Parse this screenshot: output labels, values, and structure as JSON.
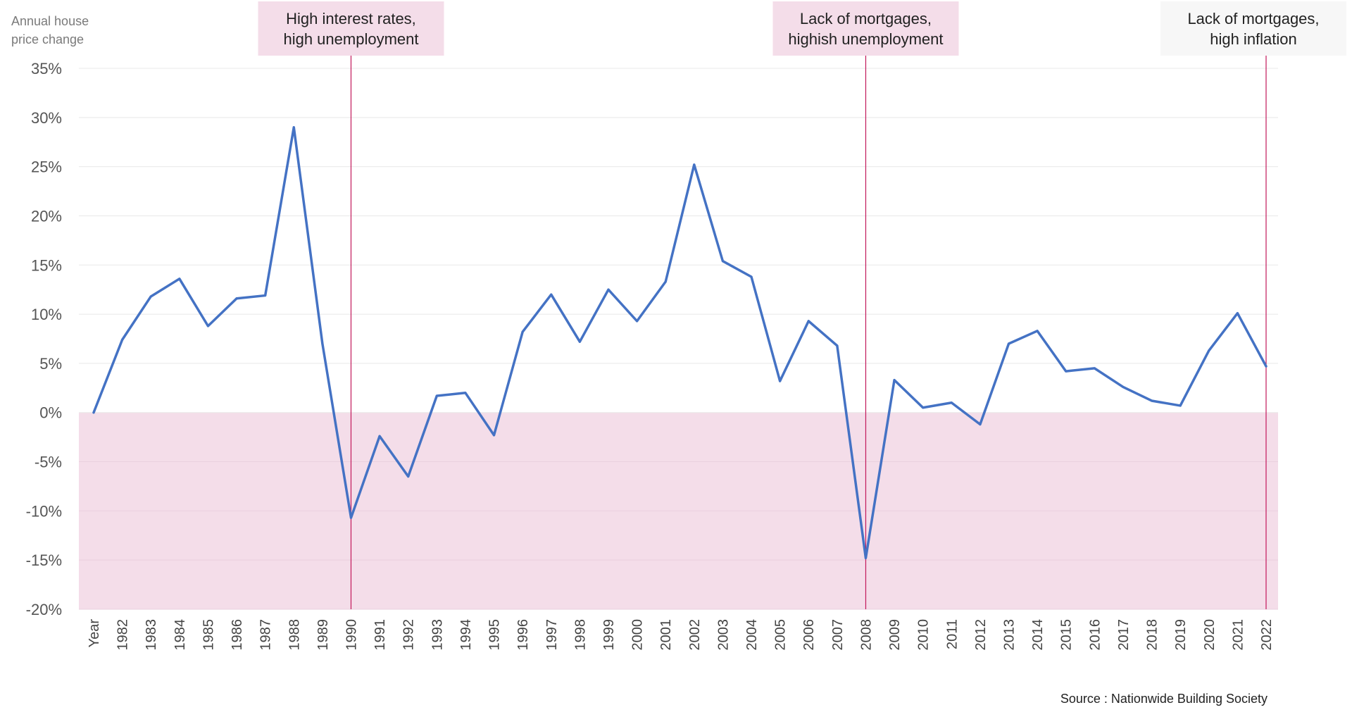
{
  "chart_data": {
    "type": "line",
    "title": "",
    "ylabel_lines": [
      "Annual house",
      "price change"
    ],
    "xlabel": "",
    "ylim": [
      -20,
      35
    ],
    "y_ticks": [
      35,
      30,
      25,
      20,
      15,
      10,
      5,
      0,
      -5,
      -10,
      -15,
      -20
    ],
    "y_tick_labels": [
      "35%",
      "30%",
      "25%",
      "20%",
      "15%",
      "10%",
      "5%",
      "0%",
      "-5%",
      "-10%",
      "-15%",
      "-20%"
    ],
    "categories": [
      "Year",
      "1982",
      "1983",
      "1984",
      "1985",
      "1986",
      "1987",
      "1988",
      "1989",
      "1990",
      "1991",
      "1992",
      "1993",
      "1994",
      "1995",
      "1996",
      "1997",
      "1998",
      "1999",
      "2000",
      "2001",
      "2002",
      "2003",
      "2004",
      "2005",
      "2006",
      "2007",
      "2008",
      "2009",
      "2010",
      "2011",
      "2012",
      "2013",
      "2014",
      "2015",
      "2016",
      "2017",
      "2018",
      "2019",
      "2020",
      "2021",
      "2022"
    ],
    "series": [
      {
        "name": "Annual house price change",
        "color": "#4472c4",
        "values": [
          0,
          7.4,
          11.8,
          13.6,
          8.8,
          11.6,
          11.9,
          29.0,
          7.0,
          -10.7,
          -2.4,
          -6.5,
          1.7,
          2.0,
          -2.3,
          8.2,
          12.0,
          7.2,
          12.5,
          9.3,
          13.3,
          25.2,
          15.4,
          13.8,
          3.2,
          9.3,
          6.8,
          -14.8,
          3.3,
          0.5,
          1.0,
          -1.2,
          7.0,
          8.3,
          4.2,
          4.5,
          2.6,
          1.2,
          0.7,
          6.3,
          10.1,
          4.7
        ]
      }
    ],
    "negative_region_color": "#f4dde9",
    "annotations": [
      {
        "category": "1990",
        "lines": [
          "High interest rates,",
          "high unemployment"
        ],
        "background": "#f4dde9"
      },
      {
        "category": "2008",
        "lines": [
          "Lack of mortgages,",
          "highish unemployment"
        ],
        "background": "#f4dde9"
      },
      {
        "category": "2022",
        "lines": [
          "Lack of mortgages,",
          "high inflation"
        ],
        "background": "#f7f7f7"
      }
    ],
    "marker_line_color": "#c2185b",
    "source": "Source : Nationwide Building Society"
  }
}
